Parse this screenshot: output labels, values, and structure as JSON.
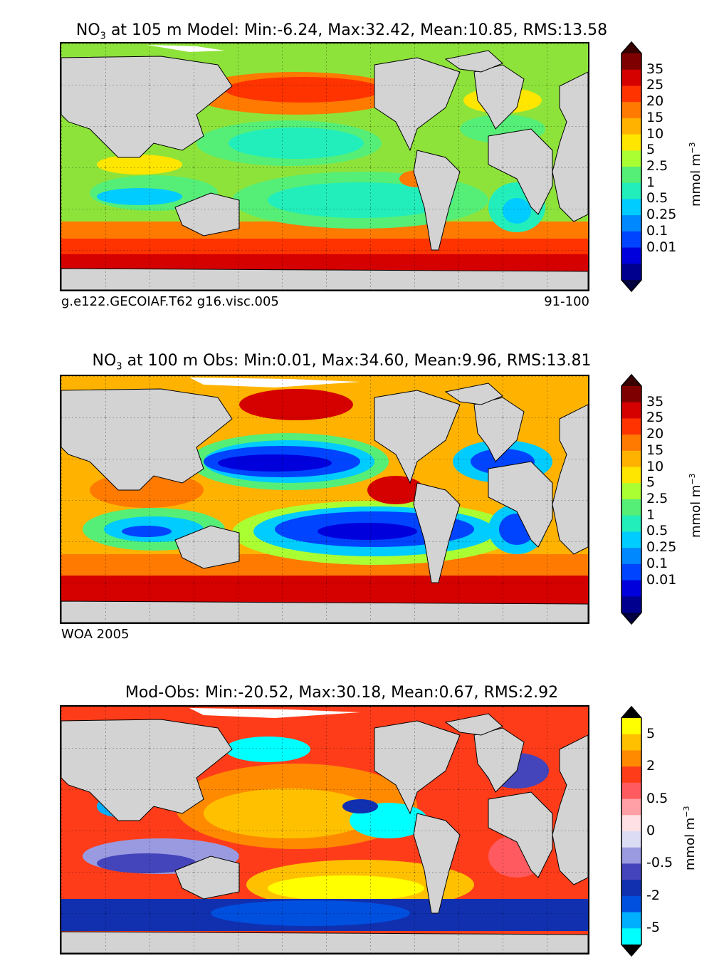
{
  "chart_data": [
    {
      "type": "heatmap",
      "title_prefix": "NO",
      "title_sub": "3",
      "title_rest": " at 105 m Model: Min:-6.24, Max:32.42, Mean:10.85, RMS:13.58",
      "footer_left": "g.e122.GECOIAF.T62 g16.visc.005",
      "footer_right": "91-100",
      "stats": {
        "min": -6.24,
        "max": 32.42,
        "mean": 10.85,
        "rms": 13.58
      },
      "depth_m": 105,
      "colorbar": {
        "unit": "mmol m",
        "unit_exp": "−3",
        "levels": [
          "35",
          "25",
          "20",
          "15",
          "10",
          "5",
          "2.5",
          "1",
          "0.5",
          "0.25",
          "0.1",
          "0.01"
        ],
        "colors": [
          "#7f0000",
          "#d50000",
          "#ff3300",
          "#ff7a00",
          "#ffb300",
          "#ffe600",
          "#aaff33",
          "#55ee77",
          "#22eebb",
          "#00ccff",
          "#0088ff",
          "#0044ff",
          "#0000dd",
          "#00008f"
        ],
        "over_color": "#3a0000",
        "under_color": "#000040"
      }
    },
    {
      "type": "heatmap",
      "title_prefix": "NO",
      "title_sub": "3",
      "title_rest": " at 100 m Obs: Min:0.01, Max:34.60, Mean:9.96, RMS:13.81",
      "footer_left": "WOA 2005",
      "stats": {
        "min": 0.01,
        "max": 34.6,
        "mean": 9.96,
        "rms": 13.81
      },
      "depth_m": 100,
      "colorbar": {
        "unit": "mmol m",
        "unit_exp": "−3",
        "levels": [
          "35",
          "25",
          "20",
          "15",
          "10",
          "5",
          "2.5",
          "1",
          "0.5",
          "0.25",
          "0.1",
          "0.01"
        ],
        "colors": [
          "#7f0000",
          "#d50000",
          "#ff3300",
          "#ff7a00",
          "#ffb300",
          "#ffe600",
          "#aaff33",
          "#55ee77",
          "#22eebb",
          "#00ccff",
          "#0088ff",
          "#0044ff",
          "#0000dd",
          "#00008f"
        ],
        "over_color": "#3a0000",
        "under_color": "#000040"
      }
    },
    {
      "type": "heatmap",
      "title_prefix": "",
      "title_sub": "",
      "title_rest": "Mod-Obs: Min:-20.52, Max:30.18, Mean:0.67, RMS:2.92",
      "stats": {
        "min": -20.52,
        "max": 30.18,
        "mean": 0.67,
        "rms": 2.92
      },
      "colorbar": {
        "unit": "mmol m",
        "unit_exp": "−3",
        "levels": [
          "5",
          "2",
          "0.5",
          "0",
          "-0.5",
          "-2",
          "-5"
        ],
        "tick_every_other": true,
        "colors": [
          "#ffff00",
          "#ffc000",
          "#ff8a00",
          "#ff3c1a",
          "#ff5a60",
          "#ffa0a6",
          "#ffe0e4",
          "#dcdcf5",
          "#9a9ae0",
          "#4444bb",
          "#1030b0",
          "#0050e0",
          "#00b0ff",
          "#00ffff"
        ],
        "over_color": "#000000",
        "under_color": "#000000"
      }
    }
  ]
}
